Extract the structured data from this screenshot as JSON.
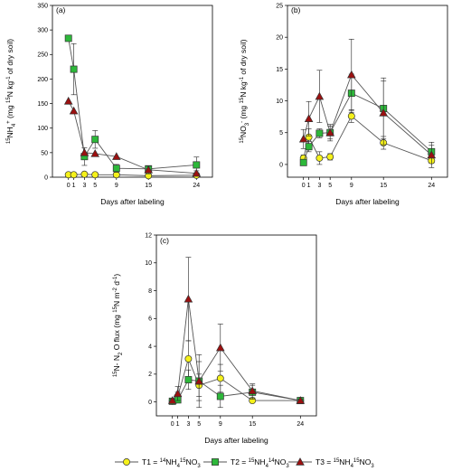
{
  "chart_data": [
    {
      "type": "line",
      "panel_label": "(a)",
      "xlabel": "Days after labeling",
      "ylabel": {
        "main": "NH",
        "sup_pre": "15",
        "sub": "4",
        "sup": "+",
        "rest": "(mg ",
        "rest_sup": "15",
        "rest2": "N kg",
        "rest2_sup": "-1",
        "rest3": " of dry soil)"
      },
      "xticks": [
        0,
        1,
        3,
        5,
        9,
        15,
        24
      ],
      "xlim": [
        -3,
        27
      ],
      "yticks": [
        0,
        50,
        100,
        150,
        200,
        250,
        300,
        350
      ],
      "ylim": [
        0,
        350
      ],
      "series": [
        {
          "key": "T1",
          "x": [
            0,
            1,
            3,
            5,
            9,
            15,
            24
          ],
          "y": [
            5,
            5,
            6,
            5,
            5,
            3,
            4
          ],
          "err": [
            0,
            0,
            2,
            1,
            1,
            1,
            1
          ]
        },
        {
          "key": "T2",
          "x": [
            0,
            1,
            3,
            5,
            9,
            15,
            24
          ],
          "y": [
            283,
            220,
            42,
            77,
            18,
            17,
            25
          ],
          "err": [
            5,
            52,
            18,
            18,
            8,
            5,
            16
          ]
        },
        {
          "key": "T3",
          "x": [
            0,
            1,
            3,
            5,
            9,
            15,
            24
          ],
          "y": [
            155,
            135,
            50,
            48,
            42,
            15,
            8
          ],
          "err": [
            0,
            0,
            0,
            0,
            0,
            8,
            5
          ]
        }
      ]
    },
    {
      "type": "line",
      "panel_label": "(b)",
      "xlabel": "Days after labeling",
      "ylabel": {
        "main": "NO",
        "sup_pre": "15",
        "sub": "3",
        "sup": "-",
        "rest": "(mg ",
        "rest_sup": "15",
        "rest2": "N kg",
        "rest2_sup": "-1",
        "rest3": " of dry soil)"
      },
      "xticks": [
        0,
        1,
        3,
        5,
        9,
        15,
        24
      ],
      "xlim": [
        -3,
        27
      ],
      "yticks": [
        0,
        5,
        10,
        15,
        20,
        25
      ],
      "ylim": [
        -2,
        25
      ],
      "series": [
        {
          "key": "T1",
          "x": [
            0,
            1,
            3,
            5,
            9,
            15,
            24
          ],
          "y": [
            1.0,
            4.3,
            1.0,
            1.2,
            7.6,
            3.4,
            0.6
          ],
          "err": [
            0.5,
            1.3,
            1.0,
            0.5,
            1.0,
            1.0,
            0.4
          ]
        },
        {
          "key": "T2",
          "x": [
            0,
            1,
            3,
            5,
            9,
            15,
            24
          ],
          "y": [
            0.3,
            2.8,
            4.9,
            5.0,
            11.2,
            8.8,
            2.0
          ],
          "err": [
            0.4,
            0.8,
            0.7,
            1.0,
            3.0,
            4.8,
            1.0
          ]
        },
        {
          "key": "T3",
          "x": [
            0,
            1,
            3,
            5,
            9,
            15,
            24
          ],
          "y": [
            4.0,
            7.2,
            10.7,
            5.0,
            14.1,
            8.1,
            1.5
          ],
          "err": [
            1.5,
            2.7,
            4.1,
            1.3,
            5.6,
            5.0,
            2.0
          ]
        }
      ]
    },
    {
      "type": "line",
      "panel_label": "(c)",
      "xlabel": "Days after labeling",
      "ylabel": {
        "pre_sup": "15",
        "main": "N- N",
        "sub": "2",
        "rest": "O flux (mg ",
        "rest_sup": "15",
        "rest2": "N m",
        "rest2_sup": "-2",
        "rest3": " d",
        "rest3_sup": "-1",
        "rest4": ")"
      },
      "xticks": [
        0,
        1,
        3,
        5,
        9,
        15,
        24
      ],
      "xlim": [
        -3,
        27
      ],
      "yticks": [
        0,
        2,
        4,
        6,
        8,
        10,
        12
      ],
      "ylim": [
        -1,
        12
      ],
      "series": [
        {
          "key": "T1",
          "x": [
            0,
            1,
            3,
            5,
            9,
            15,
            24
          ],
          "y": [
            0.05,
            0.4,
            3.1,
            1.2,
            1.7,
            0.1,
            0.1
          ],
          "err": [
            0.1,
            0.3,
            1.3,
            0.8,
            1.0,
            0.1,
            0.1
          ]
        },
        {
          "key": "T2",
          "x": [
            0,
            1,
            3,
            5,
            9,
            15,
            24
          ],
          "y": [
            0.05,
            0.15,
            1.6,
            1.5,
            0.4,
            0.7,
            0.1
          ],
          "err": [
            0.1,
            0.2,
            0.7,
            1.9,
            0.8,
            0.5,
            0.1
          ]
        },
        {
          "key": "T3",
          "x": [
            0,
            1,
            3,
            5,
            9,
            15,
            24
          ],
          "y": [
            0.1,
            0.6,
            7.4,
            1.5,
            3.9,
            0.8,
            0.1
          ],
          "err": [
            0.1,
            0.5,
            3.0,
            1.4,
            1.7,
            0.5,
            0.1
          ]
        }
      ]
    }
  ],
  "legend": [
    {
      "key": "T1",
      "label": "T1 = ",
      "sup1": "14",
      "mid": "NH",
      "sub": "4",
      "sup2": "15",
      "end": "NO",
      "sub2": "3",
      "marker": "circle",
      "fill": "#f5f11a"
    },
    {
      "key": "T2",
      "label": "T2 = ",
      "sup1": "15",
      "mid": "NH",
      "sub": "4",
      "sup2": "14",
      "end": "NO",
      "sub2": "3",
      "marker": "square",
      "fill": "#2db83a"
    },
    {
      "key": "T3",
      "label": "T3 = ",
      "sup1": "15",
      "mid": "NH",
      "sub": "4",
      "sup2": "15",
      "end": "NO",
      "sub2": "3",
      "marker": "triangle",
      "fill": "#9c1010"
    }
  ],
  "colors": {
    "T1": "#f5f11a",
    "T2": "#2db83a",
    "T3": "#9c1010",
    "line": "#555555"
  }
}
